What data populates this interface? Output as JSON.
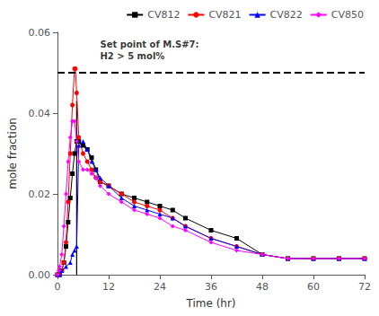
{
  "chart_data": {
    "type": "line",
    "xlabel": "Time (hr)",
    "ylabel": "mole fraction",
    "xlim": [
      0,
      72
    ],
    "ylim": [
      0.0,
      0.06
    ],
    "xticks": [
      0,
      12,
      24,
      36,
      48,
      60,
      72
    ],
    "yticks": [
      {
        "value": 0.0,
        "label": "0.00"
      },
      0.02,
      0.04,
      0.06
    ],
    "grid": false,
    "legend": "upper right",
    "reference_lines": [
      {
        "y": 0.05,
        "line_style": "dashed",
        "color": "black"
      },
      {
        "x": 4.5,
        "y0": 0.0,
        "y1": 0.043,
        "line_style": "solid",
        "color": "black"
      }
    ],
    "annotations": [
      {
        "text": "Set point of M.S#7:\nH2 > 5 mol%",
        "x": 10,
        "y": 0.0585
      }
    ],
    "series": [
      {
        "name": "CV812",
        "color": "black",
        "marker": "square",
        "x": [
          0,
          0.5,
          1,
          1.5,
          2,
          2.5,
          3,
          3.5,
          4,
          4.5,
          5,
          6,
          7,
          8,
          9,
          10,
          12,
          15,
          18,
          21,
          24,
          27,
          30,
          36,
          42,
          48,
          54,
          60,
          66,
          72
        ],
        "values": [
          0.0,
          0.0,
          0.001,
          0.003,
          0.007,
          0.013,
          0.019,
          0.025,
          0.03,
          0.033,
          0.033,
          0.032,
          0.031,
          0.029,
          0.026,
          0.023,
          0.022,
          0.02,
          0.019,
          0.018,
          0.017,
          0.016,
          0.014,
          0.011,
          0.009,
          0.005,
          0.004,
          0.004,
          0.004,
          0.004
        ]
      },
      {
        "name": "CV821",
        "color": "red",
        "marker": "circle",
        "x": [
          0,
          0.5,
          1,
          1.5,
          2,
          2.5,
          3,
          3.5,
          4,
          4.2,
          4.5,
          5,
          6,
          7,
          8,
          9,
          10,
          12,
          15,
          18,
          21,
          24,
          27,
          30,
          36,
          42,
          48,
          54,
          60,
          66,
          72
        ],
        "values": [
          0.0,
          0.0,
          0.001,
          0.003,
          0.008,
          0.018,
          0.03,
          0.042,
          0.051,
          0.051,
          0.045,
          0.034,
          0.03,
          0.028,
          0.026,
          0.024,
          0.023,
          0.022,
          0.02,
          0.018,
          0.017,
          0.016,
          0.014,
          0.012,
          0.009,
          0.007,
          0.005,
          0.004,
          0.004,
          0.004,
          0.004
        ]
      },
      {
        "name": "CV822",
        "color": "blue",
        "marker": "triangle",
        "x": [
          0,
          0.5,
          1,
          2,
          3,
          3.5,
          4,
          4.5,
          5,
          6,
          7,
          8,
          9,
          10,
          12,
          15,
          18,
          21,
          24,
          27,
          30,
          36,
          42,
          48,
          54,
          60,
          66,
          72
        ],
        "values": [
          0.0,
          0.0,
          0.001,
          0.002,
          0.003,
          0.005,
          0.006,
          0.007,
          0.032,
          0.033,
          0.031,
          0.028,
          0.026,
          0.024,
          0.022,
          0.019,
          0.017,
          0.016,
          0.015,
          0.014,
          0.012,
          0.009,
          0.007,
          0.005,
          0.004,
          0.004,
          0.004,
          0.004
        ]
      },
      {
        "name": "CV850",
        "color": "magenta",
        "marker": "diamond",
        "x": [
          0,
          0.3,
          0.5,
          1,
          1.5,
          2,
          2.5,
          3,
          3.5,
          4,
          4.5,
          5,
          6,
          7,
          8,
          9,
          10,
          12,
          15,
          18,
          21,
          24,
          27,
          30,
          36,
          42,
          48,
          54,
          60,
          66,
          72
        ],
        "values": [
          0.0,
          0.001,
          0.002,
          0.005,
          0.012,
          0.02,
          0.028,
          0.034,
          0.038,
          0.038,
          0.033,
          0.028,
          0.026,
          0.026,
          0.025,
          0.024,
          0.022,
          0.02,
          0.018,
          0.016,
          0.015,
          0.014,
          0.012,
          0.011,
          0.008,
          0.006,
          0.005,
          0.004,
          0.004,
          0.004,
          0.004
        ]
      }
    ]
  }
}
